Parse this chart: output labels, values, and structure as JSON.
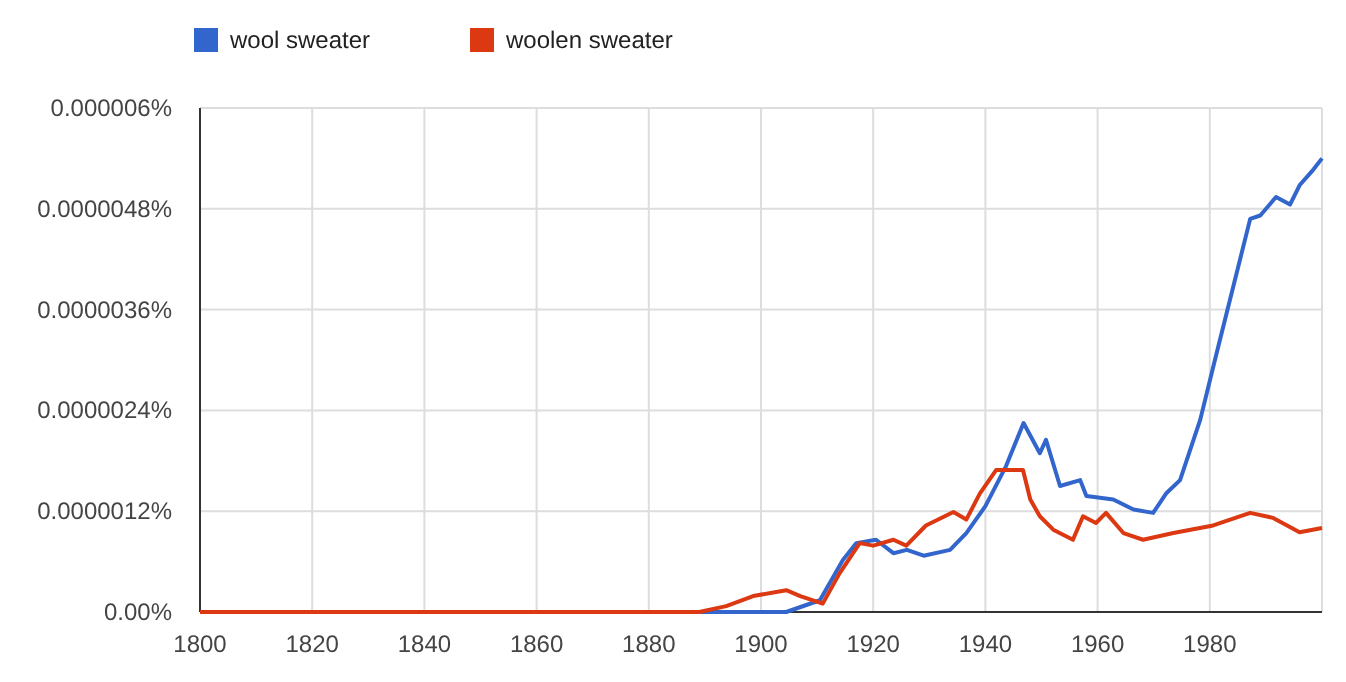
{
  "chart_data": {
    "type": "line",
    "xlim": [
      1800,
      2000
    ],
    "xticks": [
      1800,
      1820,
      1840,
      1860,
      1880,
      1900,
      1920,
      1940,
      1960,
      1980
    ],
    "ylim": [
      0,
      6e-06
    ],
    "yticks": [
      {
        "value": 0,
        "label": "0.00%"
      },
      {
        "value": 1.2e-06,
        "label": "0.0000012%"
      },
      {
        "value": 2.4e-06,
        "label": "0.0000024%"
      },
      {
        "value": 3.6e-06,
        "label": "0.0000036%"
      },
      {
        "value": 4.8e-06,
        "label": "0.0000048%"
      },
      {
        "value": 6e-06,
        "label": "0.000006%"
      }
    ],
    "grid": true,
    "legend": "top left",
    "line_style": "solid",
    "series": [
      {
        "name": "wool sweater",
        "color": "#3366cc",
        "x": [
          1800,
          1904.5,
          1910.5,
          1914.6,
          1917,
          1920.5,
          1923.6,
          1926,
          1929,
          1933.7,
          1936.6,
          1940,
          1943.7,
          1946.8,
          1949.7,
          1950.8,
          1953.3,
          1956.9,
          1958,
          1962.8,
          1966.4,
          1969.9,
          1972.2,
          1974.7,
          1978.3,
          1981.1,
          1987.2,
          1989,
          1991.8,
          1994.3,
          1996,
          1998.5,
          2000
        ],
        "values": [
          0,
          0,
          1.4e-07,
          6.2e-07,
          8.2e-07,
          8.6e-07,
          7e-07,
          7.4e-07,
          6.7e-07,
          7.4e-07,
          9.4e-07,
          1.26e-06,
          1.74e-06,
          2.25e-06,
          1.89e-06,
          2.05e-06,
          1.5e-06,
          1.57e-06,
          1.38e-06,
          1.34e-06,
          1.22e-06,
          1.18e-06,
          1.41e-06,
          1.57e-06,
          2.29e-06,
          3.05e-06,
          4.68e-06,
          4.72e-06,
          4.94e-06,
          4.85e-06,
          5.08e-06,
          5.27e-06,
          5.4e-06
        ]
      },
      {
        "name": "woolen sweater",
        "color": "#dc3912",
        "x": [
          1800,
          1889,
          1893.8,
          1898.6,
          1904.5,
          1907,
          1911,
          1914,
          1917.6,
          1920,
          1923.6,
          1925.9,
          1929.4,
          1934.3,
          1936.6,
          1939,
          1941.9,
          1945,
          1946.7,
          1948,
          1949.7,
          1952.1,
          1955.6,
          1957.4,
          1959.7,
          1961.5,
          1964.6,
          1968.1,
          1973.5,
          1980.6,
          1987.2,
          1991.3,
          1996,
          2000
        ],
        "values": [
          0,
          0,
          7e-08,
          1.9e-07,
          2.6e-07,
          1.9e-07,
          1e-07,
          4.6e-07,
          8.2e-07,
          7.9e-07,
          8.6e-07,
          7.9e-07,
          1.03e-06,
          1.19e-06,
          1.1e-06,
          1.41e-06,
          1.69e-06,
          1.69e-06,
          1.69e-06,
          1.34e-06,
          1.14e-06,
          9.8e-07,
          8.6e-07,
          1.14e-06,
          1.06e-06,
          1.18e-06,
          9.4e-07,
          8.6e-07,
          9.4e-07,
          1.03e-06,
          1.18e-06,
          1.12e-06,
          9.5e-07,
          1e-06
        ]
      }
    ]
  }
}
